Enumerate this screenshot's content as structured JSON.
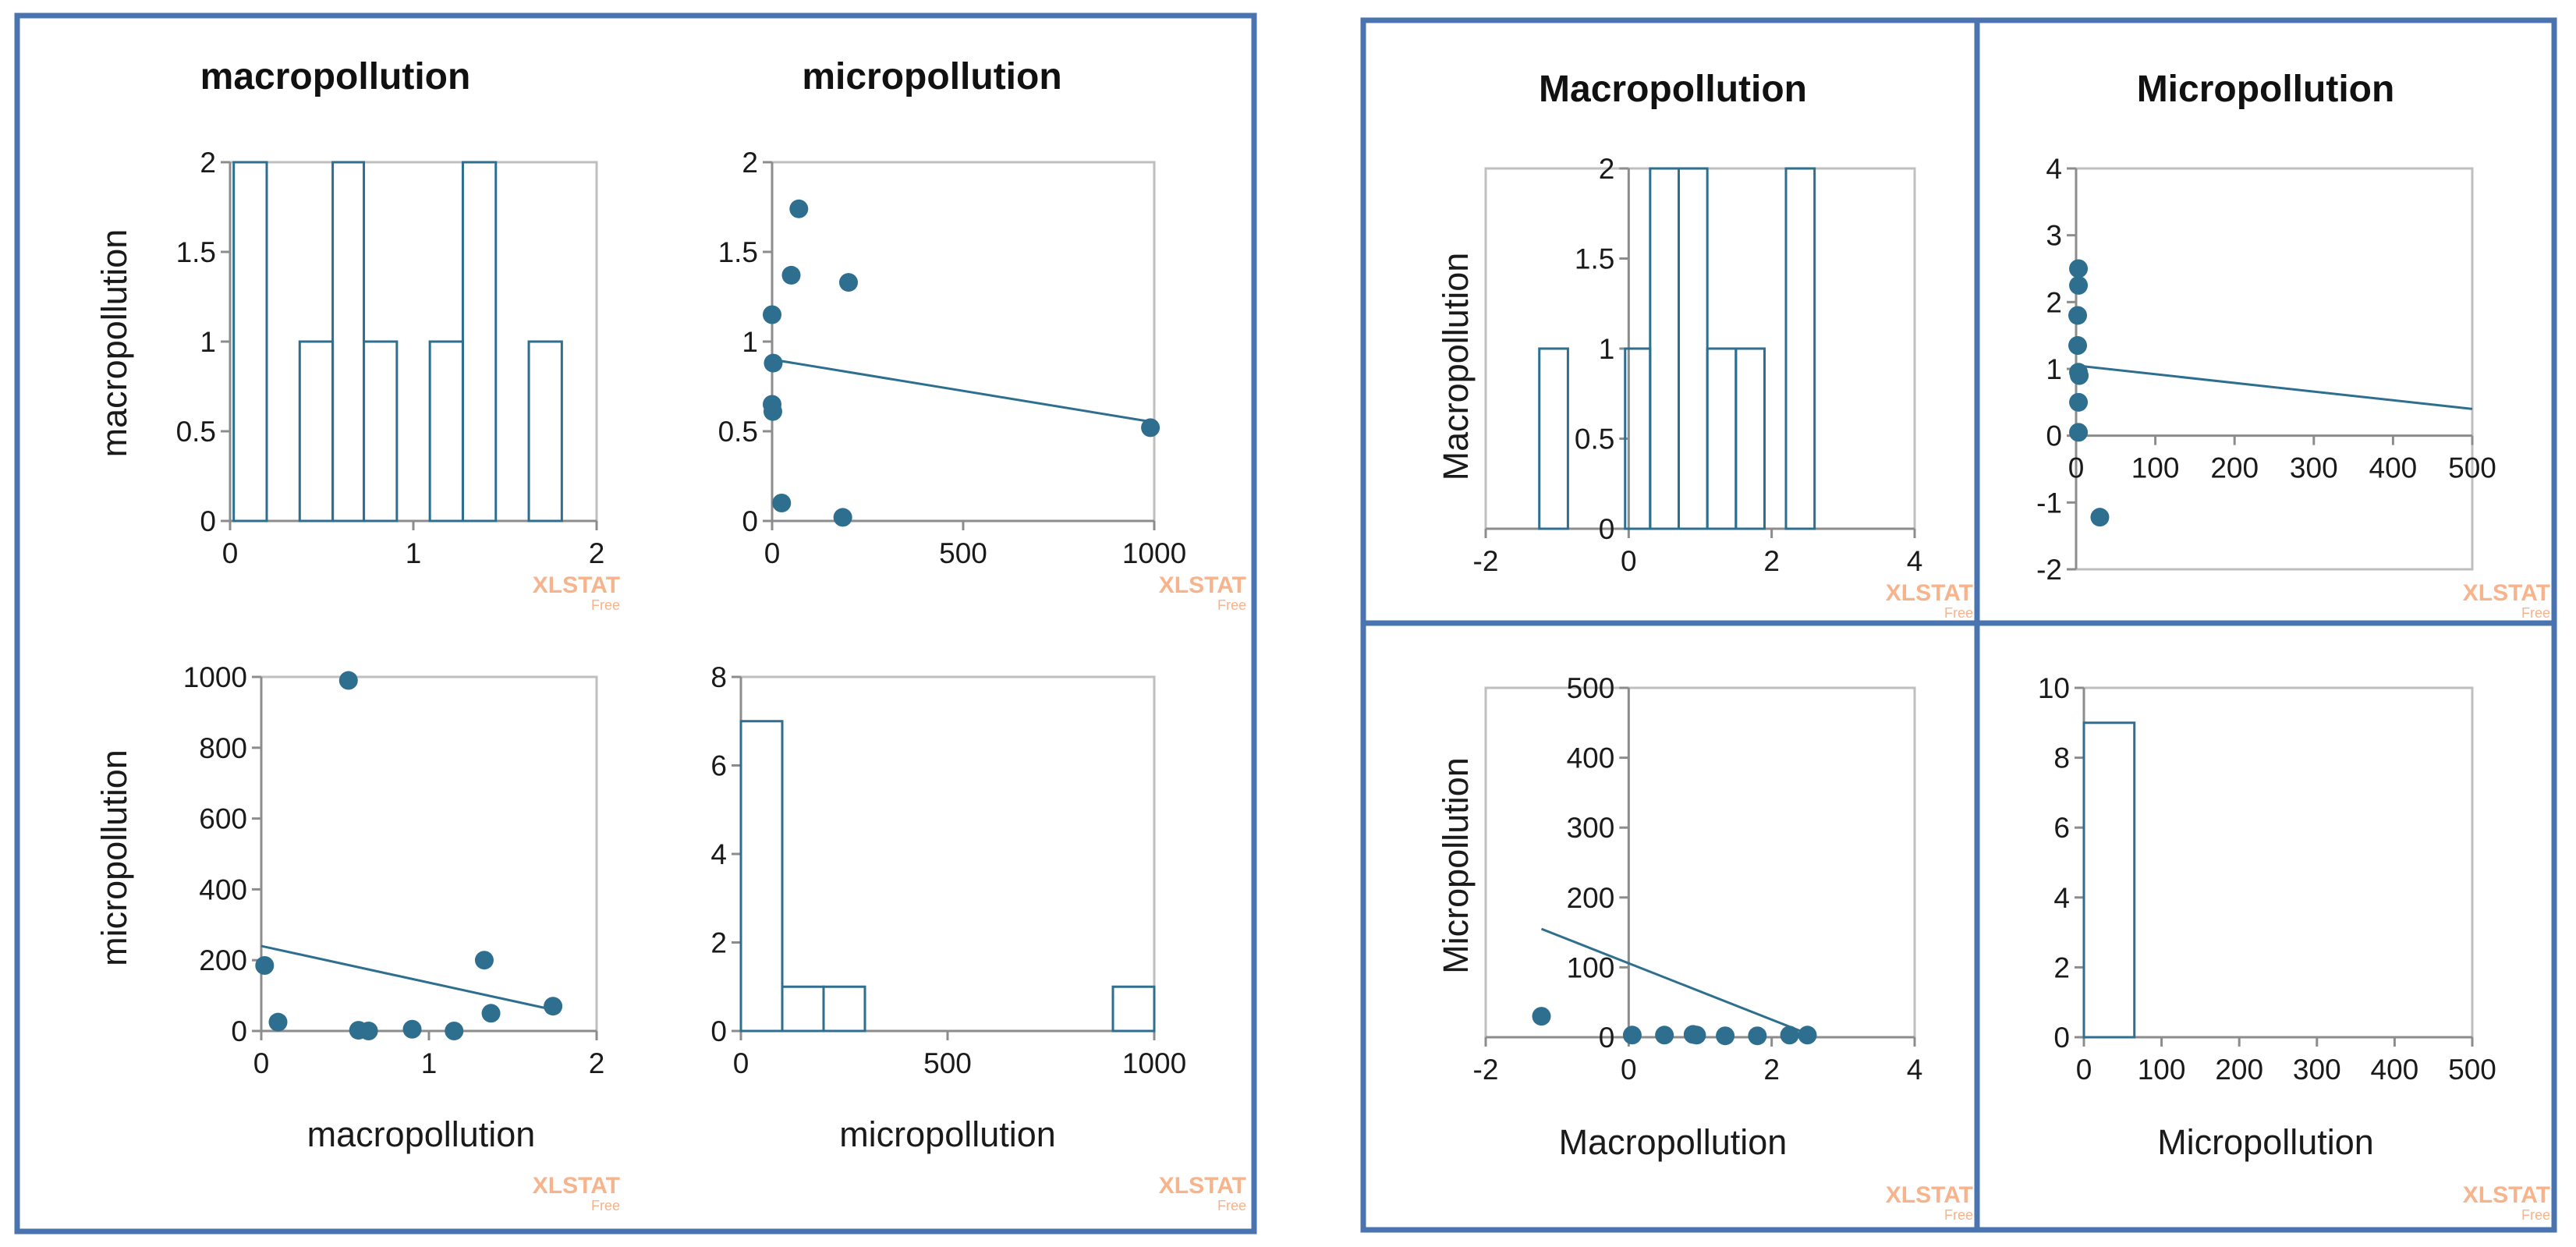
{
  "colors": {
    "mark": "#2e6e8e",
    "frame": "#4a74b0",
    "plotBorder": "#bfbfbf",
    "axis": "#8c8c8c",
    "watermark": "#f6b38c"
  },
  "watermark": {
    "brand": "XLSTAT",
    "sub": "Free"
  },
  "left_matrix": {
    "col_titles": [
      "macropollution",
      "micropollution"
    ],
    "row_labels": [
      "macropollution",
      "micropollution"
    ],
    "x_labels": [
      "macropollution",
      "micropollution"
    ]
  },
  "right_matrix": {
    "col_titles": [
      "Macropollution",
      "Micropollution"
    ],
    "row_labels": [
      "Macropollution",
      "Micropollution"
    ],
    "x_labels": [
      "Macropollution",
      "Micropollution"
    ]
  },
  "chart_data": [
    {
      "id": "L11",
      "type": "bar",
      "title": "macropollution",
      "ylabel": "macropollution",
      "xlabel": "",
      "xlim": [
        0,
        2
      ],
      "ylim": [
        0,
        2
      ],
      "xticks": [
        0,
        1,
        2
      ],
      "yticks": [
        0,
        0.5,
        1,
        1.5,
        2
      ],
      "bins": [
        {
          "x0": 0.02,
          "x1": 0.2,
          "count": 2
        },
        {
          "x0": 0.2,
          "x1": 0.38,
          "count": 0
        },
        {
          "x0": 0.38,
          "x1": 0.56,
          "count": 1
        },
        {
          "x0": 0.56,
          "x1": 0.73,
          "count": 2
        },
        {
          "x0": 0.73,
          "x1": 0.91,
          "count": 1
        },
        {
          "x0": 0.91,
          "x1": 1.09,
          "count": 0
        },
        {
          "x0": 1.09,
          "x1": 1.27,
          "count": 1
        },
        {
          "x0": 1.27,
          "x1": 1.45,
          "count": 2
        },
        {
          "x0": 1.45,
          "x1": 1.63,
          "count": 0
        },
        {
          "x0": 1.63,
          "x1": 1.81,
          "count": 1
        }
      ]
    },
    {
      "id": "L12",
      "type": "scatter",
      "title": "micropollution",
      "ylabel": "",
      "xlabel": "",
      "xlim": [
        0,
        1000
      ],
      "ylim": [
        0,
        2
      ],
      "xticks": [
        0,
        500,
        1000
      ],
      "yticks": [
        0,
        0.5,
        1,
        1.5,
        2
      ],
      "points": [
        [
          70,
          1.74
        ],
        [
          50,
          1.37
        ],
        [
          200,
          1.33
        ],
        [
          0,
          1.15
        ],
        [
          3,
          0.88
        ],
        [
          0,
          0.65
        ],
        [
          2,
          0.61
        ],
        [
          25,
          0.1
        ],
        [
          185,
          0.02
        ],
        [
          990,
          0.52
        ]
      ],
      "trend": [
        [
          0,
          0.9
        ],
        [
          1000,
          0.55
        ]
      ]
    },
    {
      "id": "L21",
      "type": "scatter",
      "title": "",
      "ylabel": "micropollution",
      "xlabel": "macropollution",
      "xlim": [
        0,
        2
      ],
      "ylim": [
        0,
        1000
      ],
      "xticks": [
        0,
        1,
        2
      ],
      "yticks": [
        0,
        200,
        400,
        600,
        800,
        1000
      ],
      "points": [
        [
          0.52,
          990
        ],
        [
          0.02,
          185
        ],
        [
          0.1,
          25
        ],
        [
          0.58,
          2
        ],
        [
          0.64,
          0
        ],
        [
          0.9,
          5
        ],
        [
          1.15,
          0
        ],
        [
          1.33,
          200
        ],
        [
          1.37,
          50
        ],
        [
          1.74,
          70
        ]
      ],
      "trend": [
        [
          0,
          240
        ],
        [
          1.74,
          60
        ]
      ]
    },
    {
      "id": "L22",
      "type": "bar",
      "title": "",
      "ylabel": "",
      "xlabel": "micropollution",
      "xlim": [
        0,
        1000
      ],
      "ylim": [
        0,
        8
      ],
      "xticks": [
        0,
        500,
        1000
      ],
      "yticks": [
        0,
        2,
        4,
        6,
        8
      ],
      "bins": [
        {
          "x0": 0,
          "x1": 100,
          "count": 7
        },
        {
          "x0": 100,
          "x1": 200,
          "count": 1
        },
        {
          "x0": 200,
          "x1": 300,
          "count": 1
        },
        {
          "x0": 300,
          "x1": 900,
          "count": 0
        },
        {
          "x0": 900,
          "x1": 1000,
          "count": 1
        }
      ]
    },
    {
      "id": "R11",
      "type": "bar",
      "title": "Macropollution",
      "ylabel": "Macropollution",
      "xlabel": "",
      "xlim": [
        -2,
        4
      ],
      "ylim": [
        0,
        2
      ],
      "xticks": [
        -2,
        0,
        2,
        4
      ],
      "yticks": [
        0,
        0.5,
        1,
        1.5,
        2
      ],
      "bins": [
        {
          "x0": -1.25,
          "x1": -0.85,
          "count": 1
        },
        {
          "x0": -0.05,
          "x1": 0.3,
          "count": 1
        },
        {
          "x0": 0.3,
          "x1": 0.7,
          "count": 2
        },
        {
          "x0": 0.7,
          "x1": 1.1,
          "count": 2
        },
        {
          "x0": 1.1,
          "x1": 1.5,
          "count": 1
        },
        {
          "x0": 1.5,
          "x1": 1.9,
          "count": 1
        },
        {
          "x0": 2.2,
          "x1": 2.6,
          "count": 2
        }
      ]
    },
    {
      "id": "R12",
      "type": "scatter",
      "title": "Micropollution",
      "ylabel": "",
      "xlabel": "",
      "xlim": [
        0,
        500
      ],
      "ylim": [
        -2,
        4
      ],
      "xticks": [
        0,
        100,
        200,
        300,
        400,
        500
      ],
      "yticks": [
        -2,
        -1,
        0,
        1,
        2,
        3,
        4
      ],
      "points": [
        [
          3,
          2.5
        ],
        [
          3,
          2.25
        ],
        [
          2,
          1.8
        ],
        [
          2,
          1.35
        ],
        [
          3,
          0.95
        ],
        [
          4,
          0.9
        ],
        [
          3,
          0.5
        ],
        [
          3,
          0.05
        ],
        [
          30,
          -1.22
        ]
      ],
      "trend": [
        [
          0,
          1.05
        ],
        [
          500,
          0.4
        ]
      ]
    },
    {
      "id": "R21",
      "type": "scatter",
      "title": "",
      "ylabel": "Micropollution",
      "xlabel": "Macropollution",
      "xlim": [
        -2,
        4
      ],
      "ylim": [
        0,
        500
      ],
      "xticks": [
        -2,
        0,
        2,
        4
      ],
      "yticks": [
        0,
        100,
        200,
        300,
        400,
        500
      ],
      "points": [
        [
          -1.22,
          30
        ],
        [
          0.05,
          3
        ],
        [
          0.5,
          3
        ],
        [
          0.9,
          4
        ],
        [
          0.95,
          3
        ],
        [
          1.35,
          2
        ],
        [
          1.8,
          2
        ],
        [
          2.25,
          3
        ],
        [
          2.5,
          3
        ]
      ],
      "trend": [
        [
          -1.22,
          155
        ],
        [
          2.5,
          5
        ]
      ]
    },
    {
      "id": "R22",
      "type": "bar",
      "title": "",
      "ylabel": "",
      "xlabel": "Micropollution",
      "xlim": [
        0,
        500
      ],
      "ylim": [
        0,
        10
      ],
      "xticks": [
        0,
        100,
        200,
        300,
        400,
        500
      ],
      "yticks": [
        0,
        2,
        4,
        6,
        8,
        10
      ],
      "bins": [
        {
          "x0": 0,
          "x1": 65,
          "count": 9
        },
        {
          "x0": 65,
          "x1": 500,
          "count": 0
        }
      ]
    }
  ]
}
